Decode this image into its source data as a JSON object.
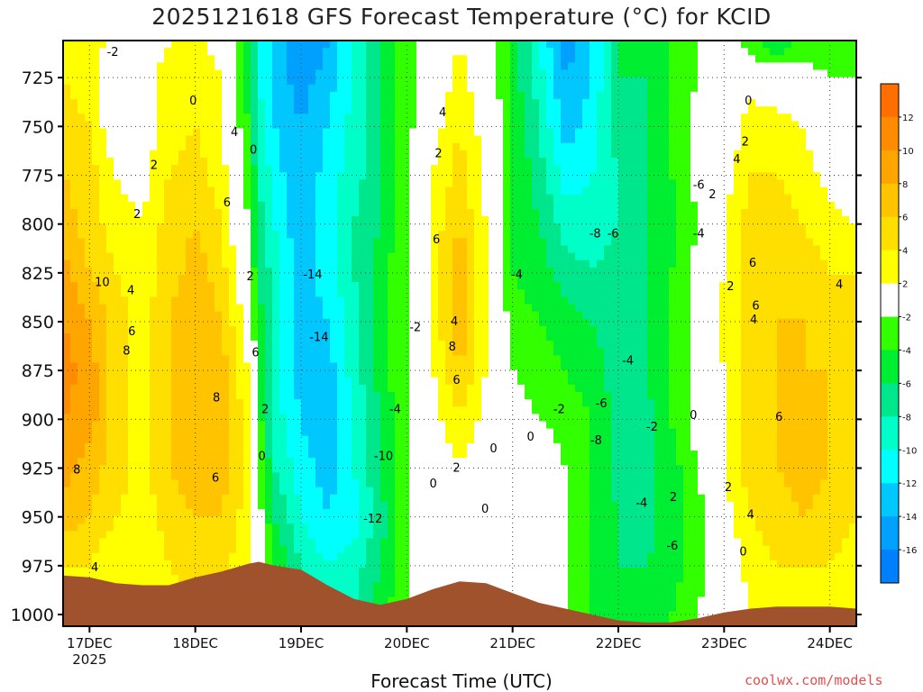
{
  "title": "2025121618 GFS Forecast Temperature (°C) for KCID",
  "credit": "coolwx.com/models",
  "chart_data": {
    "type": "heatmap",
    "title": "2025121618 GFS Forecast Temperature (°C) for KCID",
    "xlabel": "Forecast Time (UTC)",
    "ylabel": "",
    "x_ticks": [
      "17DEC",
      "18DEC",
      "19DEC",
      "20DEC",
      "21DEC",
      "22DEC",
      "23DEC",
      "24DEC"
    ],
    "x_sublabel": "2025",
    "x_range_days": [
      16.75,
      24.25
    ],
    "y_ticks": [
      725,
      750,
      775,
      800,
      825,
      850,
      875,
      900,
      925,
      950,
      975,
      1000
    ],
    "y_range_hpa": [
      706,
      1006
    ],
    "y_axis": "pressure (hPa), inverted",
    "grid": true,
    "colorbar": {
      "labels": [
        "12",
        "10",
        "8",
        "6",
        "4",
        "2",
        "-2",
        "-4",
        "-6",
        "-8",
        "-10",
        "-12",
        "-14",
        "-16"
      ],
      "colors": [
        "#ff6f00",
        "#ff8c00",
        "#ffa500",
        "#ffc300",
        "#ffdf00",
        "#ffff00",
        "#ffffff",
        "#32ff00",
        "#00ee32",
        "#00e68c",
        "#00ffc8",
        "#00ffff",
        "#00c8ff",
        "#00a0ff",
        "#0080ff"
      ]
    },
    "terrain_color": "#a0522d",
    "approx_temperature_field_c": {
      "x_days": [
        16.75,
        17.0,
        17.25,
        17.5,
        17.75,
        18.0,
        18.25,
        18.5,
        18.6,
        18.75,
        19.0,
        19.25,
        19.5,
        19.75,
        20.0,
        20.25,
        20.5,
        20.75,
        21.0,
        21.25,
        21.5,
        21.75,
        22.0,
        22.25,
        22.5,
        22.75,
        23.0,
        23.25,
        23.5,
        23.75,
        24.0,
        24.25
      ],
      "pressure_hpa": [
        710,
        725,
        750,
        775,
        800,
        825,
        850,
        875,
        900,
        925,
        950,
        975,
        1000
      ],
      "values": [
        [
          3,
          3,
          1,
          1,
          2,
          3,
          1,
          -5,
          -10,
          -12,
          -16,
          -14,
          -10,
          -6,
          -3,
          0,
          2,
          0,
          -5,
          -10,
          -15,
          -12,
          -6,
          -6,
          -4,
          -2,
          0,
          -3,
          -5,
          -3,
          -3,
          -3
        ],
        [
          4,
          3,
          0,
          1,
          3,
          4,
          2,
          -5,
          -10,
          -13,
          -15,
          -13,
          -10,
          -6,
          -3,
          0,
          3,
          0,
          -5,
          -9,
          -14,
          -12,
          -6,
          -6,
          -4,
          -2,
          0,
          1,
          0,
          -1,
          -2,
          -2
        ],
        [
          5,
          4,
          0,
          1,
          3,
          4,
          2,
          -4,
          -9,
          -12,
          -14,
          -12,
          -9,
          -6,
          -3,
          1,
          4,
          1,
          -4,
          -8,
          -13,
          -11,
          -7,
          -6,
          -4,
          -1,
          0,
          3,
          3,
          2,
          0,
          -1
        ],
        [
          6,
          5,
          2,
          1,
          4,
          5,
          3,
          -3,
          -8,
          -11,
          -14,
          -11,
          -9,
          -6,
          -2,
          2,
          5,
          1,
          -4,
          -7,
          -11,
          -10,
          -8,
          -6,
          -4,
          -1,
          1,
          4,
          4,
          3,
          1,
          0
        ],
        [
          7,
          5,
          3,
          2,
          5,
          6,
          4,
          -2,
          -7,
          -10,
          -14,
          -11,
          -8,
          -6,
          -2,
          3,
          6,
          2,
          -4,
          -6,
          -9,
          -9,
          -8,
          -6,
          -5,
          -2,
          2,
          5,
          5,
          4,
          3,
          2
        ],
        [
          9,
          6,
          4,
          3,
          5,
          7,
          5,
          -1,
          -6,
          -9,
          -13,
          -11,
          -8,
          -5,
          -2,
          3,
          8,
          2,
          -4,
          -5,
          -7,
          -8,
          -7,
          -6,
          -4,
          -1,
          2,
          5,
          6,
          5,
          4,
          4
        ],
        [
          10,
          8,
          5,
          3,
          6,
          8,
          6,
          1,
          -5,
          -9,
          -13,
          -12,
          -9,
          -5,
          -2,
          3,
          8,
          2,
          -3,
          -4,
          -5,
          -6,
          -7,
          -6,
          -4,
          -1,
          3,
          5,
          6,
          6,
          5,
          4
        ],
        [
          11,
          9,
          5,
          3,
          6,
          8,
          7,
          2,
          -4,
          -9,
          -13,
          -13,
          -9,
          -5,
          -2,
          2,
          6,
          2,
          -2,
          -3,
          -4,
          -5,
          -7,
          -6,
          -4,
          -1,
          2,
          5,
          6,
          6,
          6,
          5
        ],
        [
          10,
          9,
          5,
          3,
          6,
          8,
          7,
          3,
          -3,
          -9,
          -12,
          -14,
          -10,
          -6,
          -2,
          1,
          4,
          1,
          -1,
          -2,
          -3,
          -4,
          -7,
          -7,
          -4,
          -1,
          2,
          5,
          6,
          7,
          6,
          5
        ],
        [
          9,
          7,
          5,
          3,
          6,
          7,
          7,
          3,
          -2,
          -8,
          -11,
          -13,
          -10,
          -6,
          -2,
          0,
          2,
          0,
          -1,
          1,
          -2,
          -4,
          -7,
          -7,
          -5,
          -2,
          2,
          5,
          6,
          7,
          6,
          5
        ],
        [
          7,
          6,
          4,
          3,
          5,
          6,
          6,
          3,
          -1,
          -6,
          -10,
          -12,
          -11,
          -7,
          -2,
          -1,
          1,
          -1,
          -1,
          1,
          -2,
          -4,
          -6,
          -7,
          -5,
          -3,
          1,
          4,
          5,
          6,
          5,
          4
        ],
        [
          4,
          4,
          2,
          2,
          4,
          5,
          5,
          2,
          0,
          -4,
          -8,
          -10,
          -9,
          -6,
          -2,
          -1,
          1,
          0,
          -1,
          -1,
          -2,
          -4,
          -6,
          -6,
          -5,
          -3,
          0,
          3,
          4,
          4,
          4,
          3
        ],
        [
          3,
          3,
          2,
          2,
          3,
          4,
          4,
          2,
          0,
          -3,
          -6,
          -8,
          -8,
          -5,
          -2,
          -1,
          1,
          0,
          -1,
          -1,
          -2,
          -4,
          -5,
          -5,
          -4,
          -2,
          0,
          2,
          3,
          3,
          3,
          3
        ]
      ]
    },
    "terrain_surface_hpa": {
      "x_days": [
        16.75,
        17.0,
        17.25,
        17.5,
        17.75,
        18.0,
        18.25,
        18.5,
        18.6,
        18.75,
        19.0,
        19.25,
        19.5,
        19.75,
        20.0,
        20.25,
        20.5,
        20.75,
        21.0,
        21.25,
        21.5,
        21.75,
        22.0,
        22.25,
        22.5,
        22.75,
        23.0,
        23.25,
        23.5,
        23.75,
        24.0,
        24.25
      ],
      "p_hpa": [
        980,
        981,
        984,
        985,
        985,
        981,
        978,
        974,
        973,
        975,
        977,
        985,
        992,
        995,
        992,
        987,
        983,
        984,
        989,
        994,
        997,
        1000,
        1003,
        1004,
        1004,
        1002,
        999,
        997,
        996,
        996,
        996,
        997
      ]
    },
    "contour_labels": [
      {
        "x_day": 17.22,
        "p": 712,
        "text": "-2"
      },
      {
        "x_day": 17.12,
        "p": 830,
        "text": "10"
      },
      {
        "x_day": 17.39,
        "p": 834,
        "text": "4"
      },
      {
        "x_day": 17.4,
        "p": 855,
        "text": "6"
      },
      {
        "x_day": 17.35,
        "p": 865,
        "text": "8"
      },
      {
        "x_day": 16.88,
        "p": 926,
        "text": "8"
      },
      {
        "x_day": 17.45,
        "p": 795,
        "text": "2"
      },
      {
        "x_day": 17.61,
        "p": 770,
        "text": "2"
      },
      {
        "x_day": 17.98,
        "p": 737,
        "text": "0"
      },
      {
        "x_day": 18.37,
        "p": 753,
        "text": "4"
      },
      {
        "x_day": 18.3,
        "p": 789,
        "text": "6"
      },
      {
        "x_day": 18.52,
        "p": 827,
        "text": "2"
      },
      {
        "x_day": 18.2,
        "p": 889,
        "text": "8"
      },
      {
        "x_day": 18.19,
        "p": 930,
        "text": "6"
      },
      {
        "x_day": 18.57,
        "p": 866,
        "text": "6"
      },
      {
        "x_day": 18.55,
        "p": 762,
        "text": "0"
      },
      {
        "x_day": 18.63,
        "p": 919,
        "text": "0"
      },
      {
        "x_day": 18.66,
        "p": 895,
        "text": "2"
      },
      {
        "x_day": 19.11,
        "p": 826,
        "text": "-14"
      },
      {
        "x_day": 19.17,
        "p": 858,
        "text": "-14"
      },
      {
        "x_day": 19.78,
        "p": 919,
        "text": "-10"
      },
      {
        "x_day": 19.89,
        "p": 895,
        "text": "-4"
      },
      {
        "x_day": 19.68,
        "p": 951,
        "text": "-12"
      },
      {
        "x_day": 20.08,
        "p": 853,
        "text": "-2"
      },
      {
        "x_day": 20.3,
        "p": 764,
        "text": "2"
      },
      {
        "x_day": 20.34,
        "p": 743,
        "text": "4"
      },
      {
        "x_day": 20.28,
        "p": 808,
        "text": "6"
      },
      {
        "x_day": 20.43,
        "p": 863,
        "text": "8"
      },
      {
        "x_day": 20.45,
        "p": 850,
        "text": "4"
      },
      {
        "x_day": 20.47,
        "p": 880,
        "text": "6"
      },
      {
        "x_day": 20.47,
        "p": 925,
        "text": "2"
      },
      {
        "x_day": 20.25,
        "p": 933,
        "text": "0"
      },
      {
        "x_day": 20.82,
        "p": 915,
        "text": "0"
      },
      {
        "x_day": 20.74,
        "p": 946,
        "text": "0"
      },
      {
        "x_day": 21.17,
        "p": 909,
        "text": "0"
      },
      {
        "x_day": 21.04,
        "p": 826,
        "text": "-4"
      },
      {
        "x_day": 21.44,
        "p": 895,
        "text": "-2"
      },
      {
        "x_day": 21.78,
        "p": 805,
        "text": "-8"
      },
      {
        "x_day": 21.95,
        "p": 805,
        "text": "-6"
      },
      {
        "x_day": 22.09,
        "p": 870,
        "text": "-4"
      },
      {
        "x_day": 21.84,
        "p": 892,
        "text": "-6"
      },
      {
        "x_day": 21.79,
        "p": 911,
        "text": "-8"
      },
      {
        "x_day": 22.32,
        "p": 904,
        "text": "-2"
      },
      {
        "x_day": 22.22,
        "p": 943,
        "text": "-4"
      },
      {
        "x_day": 22.52,
        "p": 940,
        "text": "2"
      },
      {
        "x_day": 22.51,
        "p": 965,
        "text": "-6"
      },
      {
        "x_day": 22.76,
        "p": 780,
        "text": "-6"
      },
      {
        "x_day": 22.89,
        "p": 785,
        "text": "2"
      },
      {
        "x_day": 22.76,
        "p": 805,
        "text": "-4"
      },
      {
        "x_day": 23.23,
        "p": 737,
        "text": "0"
      },
      {
        "x_day": 23.2,
        "p": 758,
        "text": "2"
      },
      {
        "x_day": 23.12,
        "p": 767,
        "text": "4"
      },
      {
        "x_day": 23.27,
        "p": 820,
        "text": "6"
      },
      {
        "x_day": 23.06,
        "p": 832,
        "text": "2"
      },
      {
        "x_day": 23.28,
        "p": 849,
        "text": "4"
      },
      {
        "x_day": 23.3,
        "p": 842,
        "text": "6"
      },
      {
        "x_day": 24.09,
        "p": 831,
        "text": "4"
      },
      {
        "x_day": 22.71,
        "p": 898,
        "text": "0"
      },
      {
        "x_day": 23.52,
        "p": 899,
        "text": "6"
      },
      {
        "x_day": 23.04,
        "p": 935,
        "text": "2"
      },
      {
        "x_day": 23.25,
        "p": 949,
        "text": "4"
      },
      {
        "x_day": 23.18,
        "p": 968,
        "text": "0"
      },
      {
        "x_day": 17.05,
        "p": 976,
        "text": "4"
      }
    ]
  }
}
